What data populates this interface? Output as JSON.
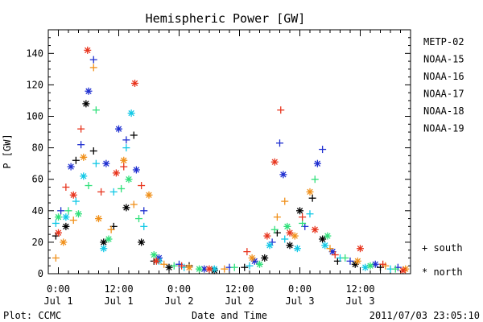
{
  "chart_data": {
    "type": "scatter",
    "title": "Hemispheric Power [GW]",
    "xlabel": "Date and Time",
    "ylabel": "P [GW]",
    "footer_left": "Plot: CCMC",
    "footer_right": "2011/07/03 23:05:10",
    "x_unit": "hours since Jul 1 00:00",
    "xlim": [
      -2,
      70
    ],
    "ylim": [
      0,
      155
    ],
    "yticks": [
      0,
      20,
      40,
      60,
      80,
      100,
      120,
      140
    ],
    "xticks": [
      {
        "x": 0,
        "time": "0:00",
        "date": "Jul 1"
      },
      {
        "x": 12,
        "time": "12:00",
        "date": "Jul 1"
      },
      {
        "x": 24,
        "time": "0:00",
        "date": "Jul 2"
      },
      {
        "x": 36,
        "time": "12:00",
        "date": "Jul 2"
      },
      {
        "x": 48,
        "time": "0:00",
        "date": "Jul 3"
      },
      {
        "x": 60,
        "time": "12:00",
        "date": "Jul 3"
      }
    ],
    "marker_legend": [
      {
        "symbol": "+",
        "label": "south"
      },
      {
        "symbol": "*",
        "label": "north"
      }
    ],
    "series": [
      {
        "name": "METP-02",
        "color": "#000000",
        "points": [
          {
            "x": -0.5,
            "y": 24,
            "m": "+"
          },
          {
            "x": 1.5,
            "y": 30,
            "m": "*"
          },
          {
            "x": 3.5,
            "y": 72,
            "m": "+"
          },
          {
            "x": 5.5,
            "y": 108,
            "m": "*"
          },
          {
            "x": 7.0,
            "y": 78,
            "m": "+"
          },
          {
            "x": 9.0,
            "y": 20,
            "m": "*"
          },
          {
            "x": 11.0,
            "y": 30,
            "m": "+"
          },
          {
            "x": 13.5,
            "y": 42,
            "m": "*"
          },
          {
            "x": 15.0,
            "y": 88,
            "m": "+"
          },
          {
            "x": 16.5,
            "y": 20,
            "m": "*"
          },
          {
            "x": 19.0,
            "y": 8,
            "m": "+"
          },
          {
            "x": 22.0,
            "y": 4,
            "m": "*"
          },
          {
            "x": 26.0,
            "y": 5,
            "m": "+"
          },
          {
            "x": 31.0,
            "y": 2,
            "m": "*"
          },
          {
            "x": 37.0,
            "y": 4,
            "m": "+"
          },
          {
            "x": 41.0,
            "y": 10,
            "m": "*"
          },
          {
            "x": 43.5,
            "y": 26,
            "m": "+"
          },
          {
            "x": 46.0,
            "y": 18,
            "m": "*"
          },
          {
            "x": 48.0,
            "y": 40,
            "m": "*"
          },
          {
            "x": 50.5,
            "y": 48,
            "m": "+"
          },
          {
            "x": 52.5,
            "y": 22,
            "m": "*"
          },
          {
            "x": 55.5,
            "y": 8,
            "m": "+"
          },
          {
            "x": 59.0,
            "y": 6,
            "m": "*"
          },
          {
            "x": 64.0,
            "y": 4,
            "m": "+"
          }
        ]
      },
      {
        "name": "NOAA-15",
        "color": "#1f2fd0",
        "points": [
          {
            "x": 0.5,
            "y": 40,
            "m": "+"
          },
          {
            "x": 2.5,
            "y": 68,
            "m": "*"
          },
          {
            "x": 4.5,
            "y": 82,
            "m": "+"
          },
          {
            "x": 6.0,
            "y": 116,
            "m": "*"
          },
          {
            "x": 7.0,
            "y": 136,
            "m": "+"
          },
          {
            "x": 9.5,
            "y": 70,
            "m": "*"
          },
          {
            "x": 12.0,
            "y": 92,
            "m": "*"
          },
          {
            "x": 13.5,
            "y": 85,
            "m": "+"
          },
          {
            "x": 15.5,
            "y": 66,
            "m": "*"
          },
          {
            "x": 17.0,
            "y": 40,
            "m": "+"
          },
          {
            "x": 20.0,
            "y": 10,
            "m": "*"
          },
          {
            "x": 24.0,
            "y": 6,
            "m": "+"
          },
          {
            "x": 29.0,
            "y": 3,
            "m": "*"
          },
          {
            "x": 34.0,
            "y": 4,
            "m": "+"
          },
          {
            "x": 39.0,
            "y": 8,
            "m": "*"
          },
          {
            "x": 42.5,
            "y": 20,
            "m": "+"
          },
          {
            "x": 44.0,
            "y": 83,
            "m": "+"
          },
          {
            "x": 44.7,
            "y": 63,
            "m": "*"
          },
          {
            "x": 49.0,
            "y": 30,
            "m": "+"
          },
          {
            "x": 51.5,
            "y": 70,
            "m": "*"
          },
          {
            "x": 52.5,
            "y": 79,
            "m": "+"
          },
          {
            "x": 54.5,
            "y": 14,
            "m": "*"
          },
          {
            "x": 58.0,
            "y": 8,
            "m": "+"
          },
          {
            "x": 63.0,
            "y": 6,
            "m": "*"
          },
          {
            "x": 67.5,
            "y": 4,
            "m": "+"
          }
        ]
      },
      {
        "name": "NOAA-16",
        "color": "#11c8e6",
        "points": [
          {
            "x": -0.5,
            "y": 32,
            "m": "+"
          },
          {
            "x": 1.5,
            "y": 36,
            "m": "*"
          },
          {
            "x": 3.5,
            "y": 46,
            "m": "+"
          },
          {
            "x": 5.0,
            "y": 62,
            "m": "*"
          },
          {
            "x": 7.5,
            "y": 70,
            "m": "+"
          },
          {
            "x": 9.0,
            "y": 16,
            "m": "*"
          },
          {
            "x": 11.0,
            "y": 52,
            "m": "+"
          },
          {
            "x": 13.5,
            "y": 80,
            "m": "+"
          },
          {
            "x": 14.5,
            "y": 102,
            "m": "*"
          },
          {
            "x": 17.0,
            "y": 30,
            "m": "+"
          },
          {
            "x": 20.0,
            "y": 8,
            "m": "*"
          },
          {
            "x": 25.0,
            "y": 4,
            "m": "+"
          },
          {
            "x": 31.0,
            "y": 3,
            "m": "*"
          },
          {
            "x": 38.0,
            "y": 5,
            "m": "+"
          },
          {
            "x": 42.0,
            "y": 18,
            "m": "*"
          },
          {
            "x": 45.0,
            "y": 22,
            "m": "+"
          },
          {
            "x": 47.5,
            "y": 16,
            "m": "*"
          },
          {
            "x": 50.0,
            "y": 38,
            "m": "+"
          },
          {
            "x": 53.0,
            "y": 18,
            "m": "*"
          },
          {
            "x": 56.0,
            "y": 10,
            "m": "+"
          },
          {
            "x": 61.0,
            "y": 4,
            "m": "*"
          },
          {
            "x": 66.0,
            "y": 3,
            "m": "+"
          }
        ]
      },
      {
        "name": "NOAA-17",
        "color": "#2fe07a",
        "points": [
          {
            "x": 0.0,
            "y": 36,
            "m": "*"
          },
          {
            "x": 2.0,
            "y": 40,
            "m": "+"
          },
          {
            "x": 4.0,
            "y": 38,
            "m": "*"
          },
          {
            "x": 6.0,
            "y": 56,
            "m": "+"
          },
          {
            "x": 7.5,
            "y": 104,
            "m": "+"
          },
          {
            "x": 10.0,
            "y": 22,
            "m": "*"
          },
          {
            "x": 12.5,
            "y": 54,
            "m": "+"
          },
          {
            "x": 14.0,
            "y": 60,
            "m": "*"
          },
          {
            "x": 16.0,
            "y": 35,
            "m": "+"
          },
          {
            "x": 19.0,
            "y": 12,
            "m": "*"
          },
          {
            "x": 23.0,
            "y": 5,
            "m": "+"
          },
          {
            "x": 28.0,
            "y": 3,
            "m": "*"
          },
          {
            "x": 35.0,
            "y": 4,
            "m": "+"
          },
          {
            "x": 40.0,
            "y": 6,
            "m": "*"
          },
          {
            "x": 43.0,
            "y": 28,
            "m": "+"
          },
          {
            "x": 45.5,
            "y": 30,
            "m": "*"
          },
          {
            "x": 48.5,
            "y": 32,
            "m": "+"
          },
          {
            "x": 51.0,
            "y": 60,
            "m": "+"
          },
          {
            "x": 53.5,
            "y": 24,
            "m": "*"
          },
          {
            "x": 57.0,
            "y": 10,
            "m": "+"
          },
          {
            "x": 62.0,
            "y": 5,
            "m": "*"
          },
          {
            "x": 67.0,
            "y": 3,
            "m": "+"
          }
        ]
      },
      {
        "name": "NOAA-18",
        "color": "#f0901a",
        "points": [
          {
            "x": -0.5,
            "y": 10,
            "m": "+"
          },
          {
            "x": 1.0,
            "y": 20,
            "m": "*"
          },
          {
            "x": 3.0,
            "y": 34,
            "m": "+"
          },
          {
            "x": 5.0,
            "y": 74,
            "m": "*"
          },
          {
            "x": 7.0,
            "y": 131,
            "m": "+"
          },
          {
            "x": 8.0,
            "y": 35,
            "m": "*"
          },
          {
            "x": 10.5,
            "y": 28,
            "m": "+"
          },
          {
            "x": 13.0,
            "y": 72,
            "m": "*"
          },
          {
            "x": 15.0,
            "y": 44,
            "m": "+"
          },
          {
            "x": 18.0,
            "y": 50,
            "m": "*"
          },
          {
            "x": 21.0,
            "y": 6,
            "m": "+"
          },
          {
            "x": 26.0,
            "y": 4,
            "m": "*"
          },
          {
            "x": 33.0,
            "y": 3,
            "m": "+"
          },
          {
            "x": 38.5,
            "y": 10,
            "m": "*"
          },
          {
            "x": 43.5,
            "y": 36,
            "m": "+"
          },
          {
            "x": 45.0,
            "y": 46,
            "m": "+"
          },
          {
            "x": 47.0,
            "y": 24,
            "m": "*"
          },
          {
            "x": 50.0,
            "y": 52,
            "m": "*"
          },
          {
            "x": 54.0,
            "y": 16,
            "m": "+"
          },
          {
            "x": 59.5,
            "y": 8,
            "m": "*"
          },
          {
            "x": 65.0,
            "y": 5,
            "m": "+"
          },
          {
            "x": 69.0,
            "y": 3,
            "m": "*"
          }
        ]
      },
      {
        "name": "NOAA-19",
        "color": "#e8351e",
        "points": [
          {
            "x": 0.0,
            "y": 26,
            "m": "*"
          },
          {
            "x": 1.5,
            "y": 55,
            "m": "+"
          },
          {
            "x": 3.0,
            "y": 50,
            "m": "*"
          },
          {
            "x": 4.5,
            "y": 92,
            "m": "+"
          },
          {
            "x": 5.8,
            "y": 142,
            "m": "*"
          },
          {
            "x": 8.5,
            "y": 52,
            "m": "+"
          },
          {
            "x": 11.5,
            "y": 64,
            "m": "*"
          },
          {
            "x": 13.0,
            "y": 68,
            "m": "+"
          },
          {
            "x": 15.2,
            "y": 121,
            "m": "*"
          },
          {
            "x": 16.5,
            "y": 56,
            "m": "+"
          },
          {
            "x": 19.5,
            "y": 8,
            "m": "*"
          },
          {
            "x": 24.5,
            "y": 5,
            "m": "+"
          },
          {
            "x": 30.0,
            "y": 3,
            "m": "*"
          },
          {
            "x": 37.5,
            "y": 14,
            "m": "+"
          },
          {
            "x": 41.5,
            "y": 24,
            "m": "*"
          },
          {
            "x": 43.0,
            "y": 71,
            "m": "*"
          },
          {
            "x": 44.2,
            "y": 104,
            "m": "+"
          },
          {
            "x": 46.0,
            "y": 26,
            "m": "*"
          },
          {
            "x": 48.5,
            "y": 36,
            "m": "+"
          },
          {
            "x": 51.0,
            "y": 28,
            "m": "*"
          },
          {
            "x": 55.0,
            "y": 12,
            "m": "+"
          },
          {
            "x": 60.0,
            "y": 16,
            "m": "*"
          },
          {
            "x": 64.5,
            "y": 6,
            "m": "+"
          },
          {
            "x": 68.5,
            "y": 2,
            "m": "*"
          }
        ]
      }
    ]
  }
}
